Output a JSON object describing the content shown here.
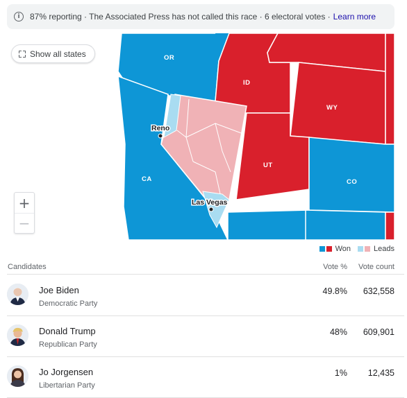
{
  "banner": {
    "icon": "info-icon",
    "text": "87% reporting · The Associated Press has not called this race · 6 electoral votes · ",
    "link": "Learn more"
  },
  "map": {
    "show_all_label": "Show all states",
    "zoom_in": "+",
    "zoom_out": "−",
    "states": {
      "OR": "OR",
      "ID": "ID",
      "WY": "WY",
      "CA": "CA",
      "UT": "UT",
      "CO": "CO"
    },
    "cities": {
      "reno": "Reno",
      "las_vegas": "Las Vegas"
    },
    "colors": {
      "dem_won": "#0e96d6",
      "rep_won": "#d9202c",
      "dem_leads": "#a9dcf1",
      "rep_leads": "#f0b2b6"
    }
  },
  "legend": {
    "won": "Won",
    "leads": "Leads"
  },
  "table": {
    "headers": {
      "candidates": "Candidates",
      "vote_pct": "Vote %",
      "vote_count": "Vote count"
    },
    "rows": [
      {
        "name": "Joe Biden",
        "party": "Democratic Party",
        "pct": "49.8%",
        "votes": "632,558"
      },
      {
        "name": "Donald Trump",
        "party": "Republican Party",
        "pct": "48%",
        "votes": "609,901"
      },
      {
        "name": "Jo Jorgensen",
        "party": "Libertarian Party",
        "pct": "1%",
        "votes": "12,435"
      }
    ]
  }
}
